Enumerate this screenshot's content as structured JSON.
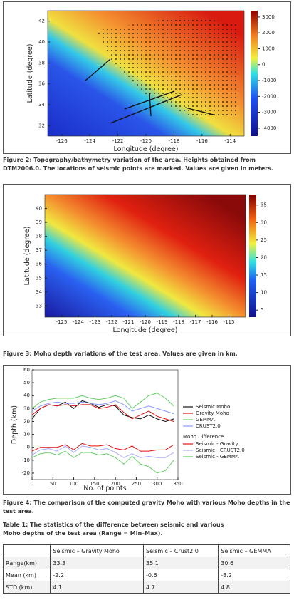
{
  "figure2": {
    "xlim": [
      -127,
      -113
    ],
    "xticks": [
      -126,
      -124,
      -122,
      -120,
      -118,
      -116,
      -114
    ],
    "ylim": [
      31,
      43
    ],
    "yticks": [
      32,
      34,
      36,
      38,
      40,
      42
    ],
    "clim": [
      -4500,
      3400
    ],
    "cticks": [
      3000,
      2000,
      1000,
      0,
      -1000,
      -2000,
      -3000,
      -4000
    ],
    "xlabel": "Longitude (degree)",
    "ylabel": "Latitude (degree)",
    "caption": "Figure 2: Topography/bathymetry variation of the area. Heights obtained from DTM2006.0. The locations of seismic points are marked. Values are given in meters."
  },
  "figure3": {
    "xlim": [
      -126,
      -114
    ],
    "xticks": [
      -125,
      -124,
      -123,
      -122,
      -121,
      -120,
      -119,
      -118,
      -117,
      -116,
      -115
    ],
    "ylim": [
      32.2,
      41
    ],
    "yticks": [
      33,
      34,
      35,
      36,
      37,
      38,
      39,
      40
    ],
    "clim": [
      3,
      38
    ],
    "cticks": [
      35,
      30,
      25,
      20,
      15,
      10,
      5
    ],
    "xlabel": "Longitude (degree)",
    "ylabel": "Latitude (degree)",
    "caption": "Figure 3: Moho depth variations of the test area. Values are given in km."
  },
  "figure4": {
    "type": "line",
    "xlim": [
      0,
      350
    ],
    "xticks": [
      0,
      50,
      100,
      150,
      200,
      250,
      300,
      350
    ],
    "ylim": [
      -25,
      60
    ],
    "yticks": [
      60,
      50,
      40,
      30,
      20,
      10,
      0,
      -10,
      -20
    ],
    "xlabel": "No. of points",
    "ylabel": "Depth (km)",
    "difference_legend_title": "Moho Difference",
    "x": [
      0,
      20,
      40,
      60,
      80,
      100,
      120,
      140,
      160,
      180,
      200,
      220,
      240,
      260,
      280,
      300,
      320,
      340
    ],
    "series": [
      {
        "name": "Seismic Moho",
        "color": "#111111",
        "values": [
          22,
          30,
          33,
          32,
          35,
          30,
          36,
          34,
          31,
          33,
          32,
          25,
          23,
          22,
          25,
          22,
          20,
          22
        ]
      },
      {
        "name": "Gravity Moho",
        "color": "#e01010",
        "values": [
          25,
          30,
          33,
          32,
          33,
          32,
          33,
          33,
          30,
          31,
          33,
          27,
          22,
          25,
          28,
          24,
          22,
          20
        ]
      },
      {
        "name": "GEMMA",
        "color": "#66cc66",
        "values": [
          30,
          35,
          37,
          38,
          38,
          38,
          40,
          38,
          37,
          38,
          40,
          38,
          30,
          35,
          40,
          42,
          38,
          32
        ]
      },
      {
        "name": "CRUST2.0",
        "color": "#8899ff",
        "values": [
          28,
          32,
          34,
          35,
          34,
          34,
          35,
          34,
          33,
          34,
          36,
          33,
          28,
          30,
          32,
          30,
          28,
          26
        ]
      },
      {
        "name": "Seismic - Gravity",
        "color": "#e01010",
        "values": [
          -3,
          0,
          0,
          0,
          2,
          -2,
          3,
          1,
          1,
          2,
          -1,
          -2,
          1,
          -3,
          -3,
          -2,
          -2,
          2
        ]
      },
      {
        "name": "Seismic - CRUST2.0",
        "color": "#aaaaff",
        "values": [
          -6,
          -2,
          -1,
          -3,
          1,
          -4,
          1,
          0,
          -2,
          -1,
          -4,
          -8,
          -5,
          -8,
          -7,
          -8,
          -8,
          -4
        ]
      },
      {
        "name": "Seismic - GEMMA",
        "color": "#66cc66",
        "values": [
          -8,
          -5,
          -4,
          -6,
          -3,
          -8,
          -4,
          -4,
          -6,
          -5,
          -8,
          -13,
          -7,
          -13,
          -15,
          -20,
          -18,
          -10
        ]
      }
    ],
    "caption": "Figure 4: The comparison of the computed gravity Moho with various Moho depths in the test area."
  },
  "table": {
    "caption": [
      "Table 1: The statistics of the difference between seismic and various",
      "Moho depths of the test area (Range = Min–Max)."
    ],
    "header": [
      "",
      "Seismic – Gravity Moho",
      "Seismic – Crust2.0",
      "Seismic – GEMMA"
    ],
    "rows": [
      [
        "Range(km)",
        "33.3",
        "35.1",
        "30.6"
      ],
      [
        "Mean (km)",
        "-2.2",
        "-0.6",
        "-8.2"
      ],
      [
        "STD (km)",
        "4.1",
        "4.7",
        "4.8"
      ]
    ]
  }
}
